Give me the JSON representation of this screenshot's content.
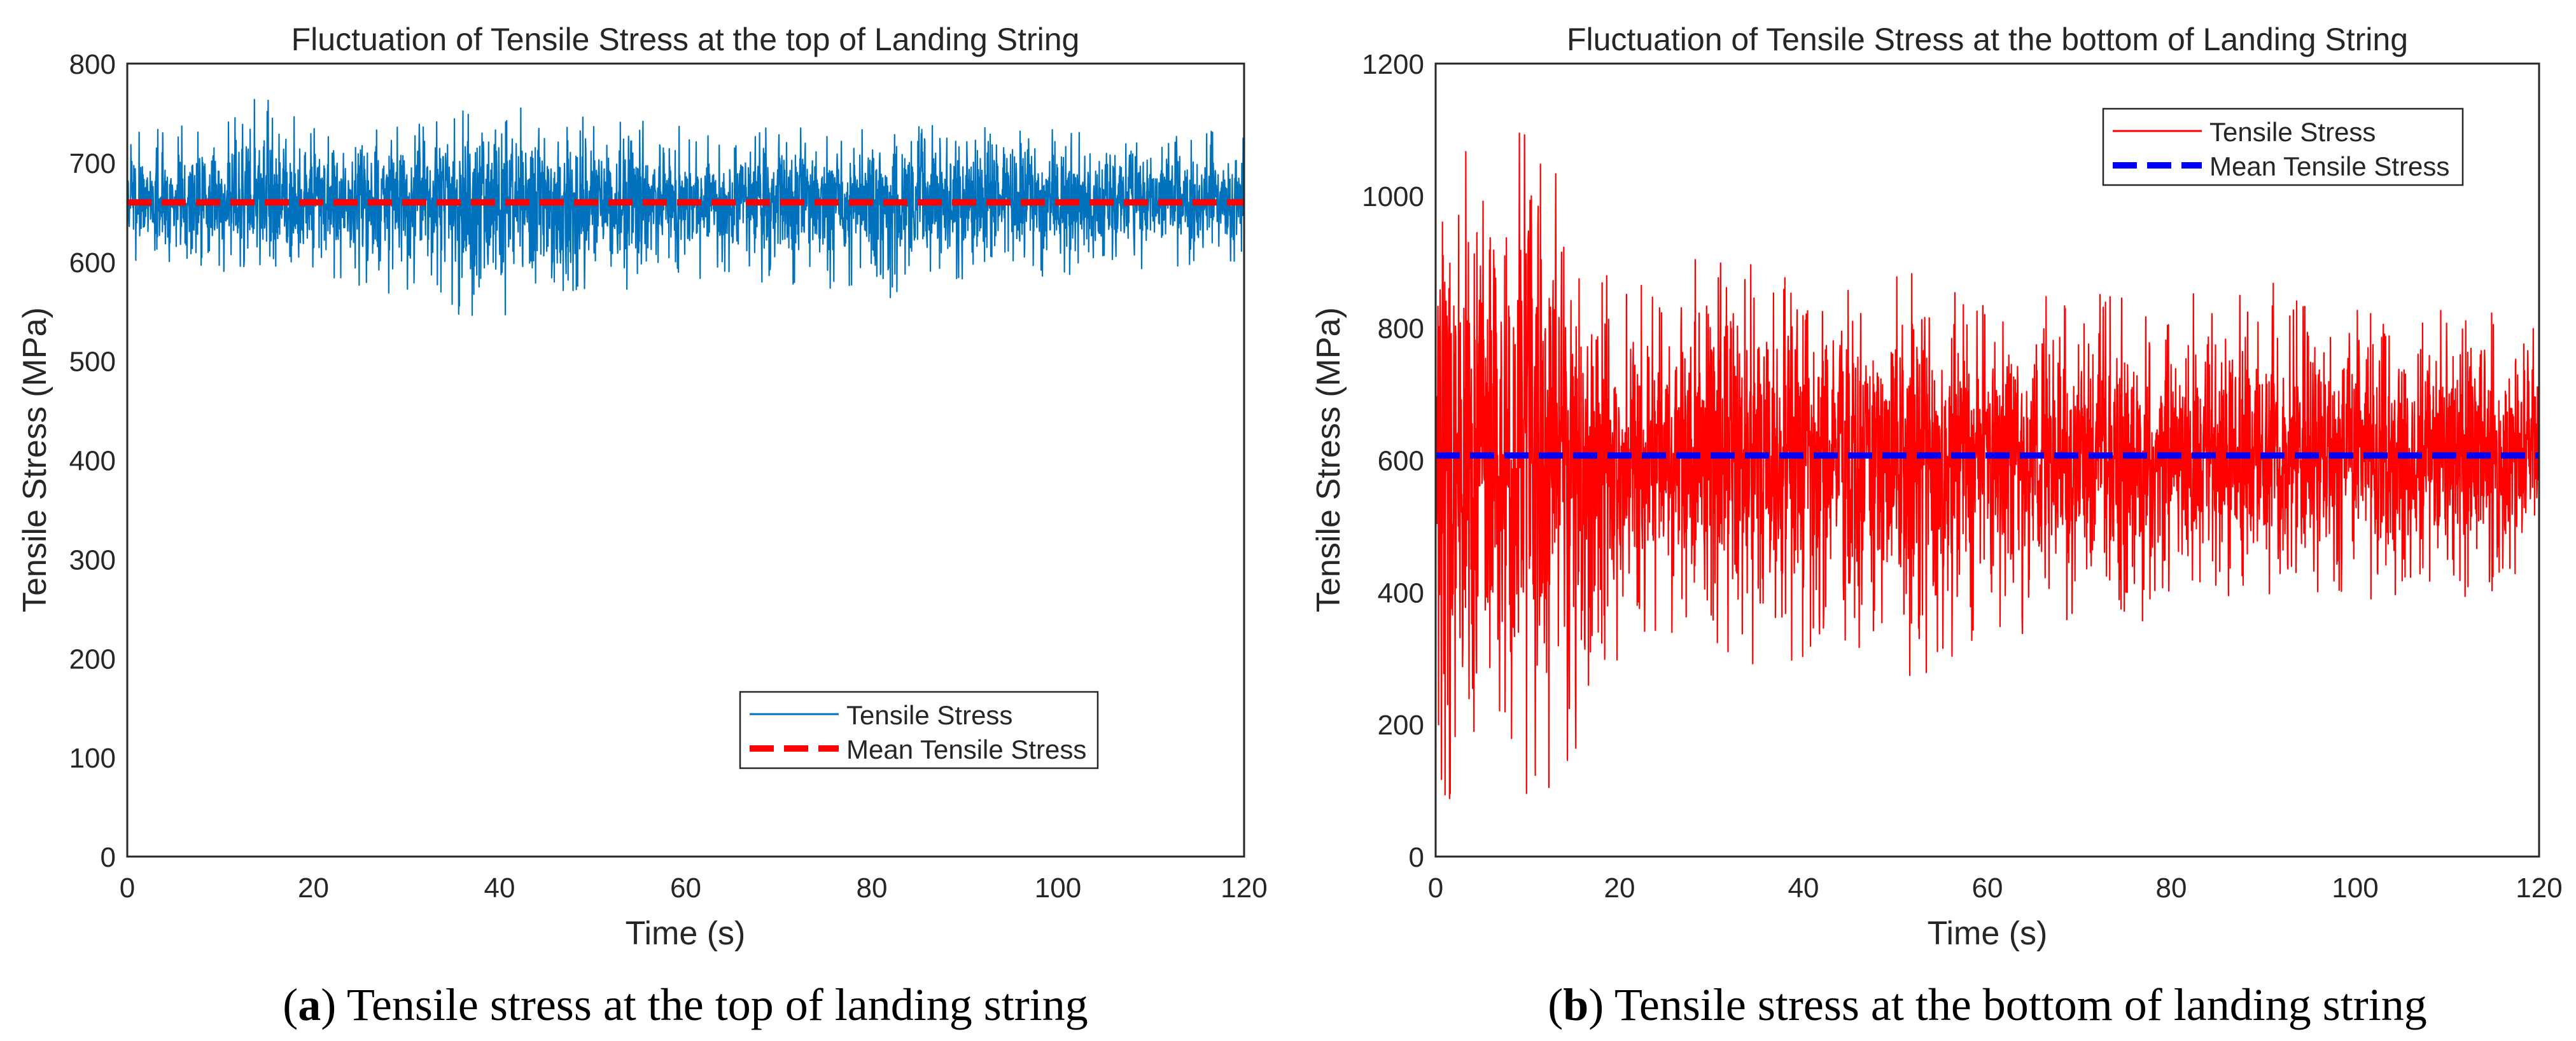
{
  "colors": {
    "top_signal": "#0072BD",
    "top_mean": "#FF0000",
    "bottom_signal": "#FF0000",
    "bottom_mean": "#0000FF",
    "axis": "#262626"
  },
  "chart_data": [
    {
      "type": "line",
      "title": "Fluctuation of Tensile Stress at the top of Landing String",
      "xlabel": "Time (s)",
      "ylabel": "Tensile Stress (MPa)",
      "xlim": [
        0,
        120
      ],
      "ylim": [
        0,
        800
      ],
      "xticks": [
        0,
        20,
        40,
        60,
        80,
        100,
        120
      ],
      "yticks": [
        0,
        100,
        200,
        300,
        400,
        500,
        600,
        700,
        800
      ],
      "legend_location": "bottom-right",
      "series": [
        {
          "name": "Tensile Stress",
          "style": "solid",
          "mean": 660,
          "envelope": [
            {
              "t": 0,
              "lo": 600,
              "hi": 735
            },
            {
              "t": 10,
              "lo": 590,
              "hi": 745
            },
            {
              "t": 14,
              "lo": 585,
              "hi": 775
            },
            {
              "t": 20,
              "lo": 580,
              "hi": 740
            },
            {
              "t": 30,
              "lo": 555,
              "hi": 740
            },
            {
              "t": 40,
              "lo": 535,
              "hi": 760
            },
            {
              "t": 50,
              "lo": 570,
              "hi": 745
            },
            {
              "t": 60,
              "lo": 575,
              "hi": 740
            },
            {
              "t": 70,
              "lo": 580,
              "hi": 735
            },
            {
              "t": 80,
              "lo": 560,
              "hi": 735
            },
            {
              "t": 90,
              "lo": 580,
              "hi": 740
            },
            {
              "t": 100,
              "lo": 585,
              "hi": 735
            },
            {
              "t": 110,
              "lo": 590,
              "hi": 735
            },
            {
              "t": 120,
              "lo": 590,
              "hi": 730
            }
          ]
        },
        {
          "name": "Mean Tensile Stress",
          "style": "dashed",
          "x": [
            0,
            120
          ],
          "values": [
            660,
            660
          ]
        }
      ]
    },
    {
      "type": "line",
      "title": "Fluctuation of Tensile Stress at the bottom of Landing String",
      "xlabel": "Time (s)",
      "ylabel": "Tensile Stress (MPa)",
      "xlim": [
        0,
        120
      ],
      "ylim": [
        0,
        1200
      ],
      "xticks": [
        0,
        20,
        40,
        60,
        80,
        100,
        120
      ],
      "yticks": [
        0,
        200,
        400,
        600,
        800,
        1000,
        1200
      ],
      "legend_location": "top-right",
      "series": [
        {
          "name": "Tensile Stress",
          "style": "solid",
          "mean": 607,
          "envelope": [
            {
              "t": 0,
              "lo": 80,
              "hi": 1050
            },
            {
              "t": 5,
              "lo": 100,
              "hi": 1100
            },
            {
              "t": 10,
              "lo": 80,
              "hi": 1140
            },
            {
              "t": 15,
              "lo": 130,
              "hi": 1060
            },
            {
              "t": 18,
              "lo": 200,
              "hi": 900
            },
            {
              "t": 20,
              "lo": 300,
              "hi": 850
            },
            {
              "t": 25,
              "lo": 300,
              "hi": 880
            },
            {
              "t": 30,
              "lo": 280,
              "hi": 940
            },
            {
              "t": 40,
              "lo": 290,
              "hi": 880
            },
            {
              "t": 47,
              "lo": 280,
              "hi": 920
            },
            {
              "t": 54,
              "lo": 270,
              "hi": 880
            },
            {
              "t": 60,
              "lo": 330,
              "hi": 850
            },
            {
              "t": 70,
              "lo": 350,
              "hi": 860
            },
            {
              "t": 80,
              "lo": 360,
              "hi": 850
            },
            {
              "t": 88,
              "lo": 380,
              "hi": 890
            },
            {
              "t": 100,
              "lo": 380,
              "hi": 840
            },
            {
              "t": 110,
              "lo": 390,
              "hi": 830
            },
            {
              "t": 120,
              "lo": 400,
              "hi": 820
            }
          ]
        },
        {
          "name": "Mean Tensile Stress",
          "style": "dashed",
          "x": [
            0,
            120
          ],
          "values": [
            607,
            607
          ]
        }
      ]
    }
  ],
  "captions": [
    {
      "letter": "a",
      "text": "Tensile stress at the top of landing string"
    },
    {
      "letter": "b",
      "text": "Tensile stress at the bottom of landing string"
    }
  ]
}
